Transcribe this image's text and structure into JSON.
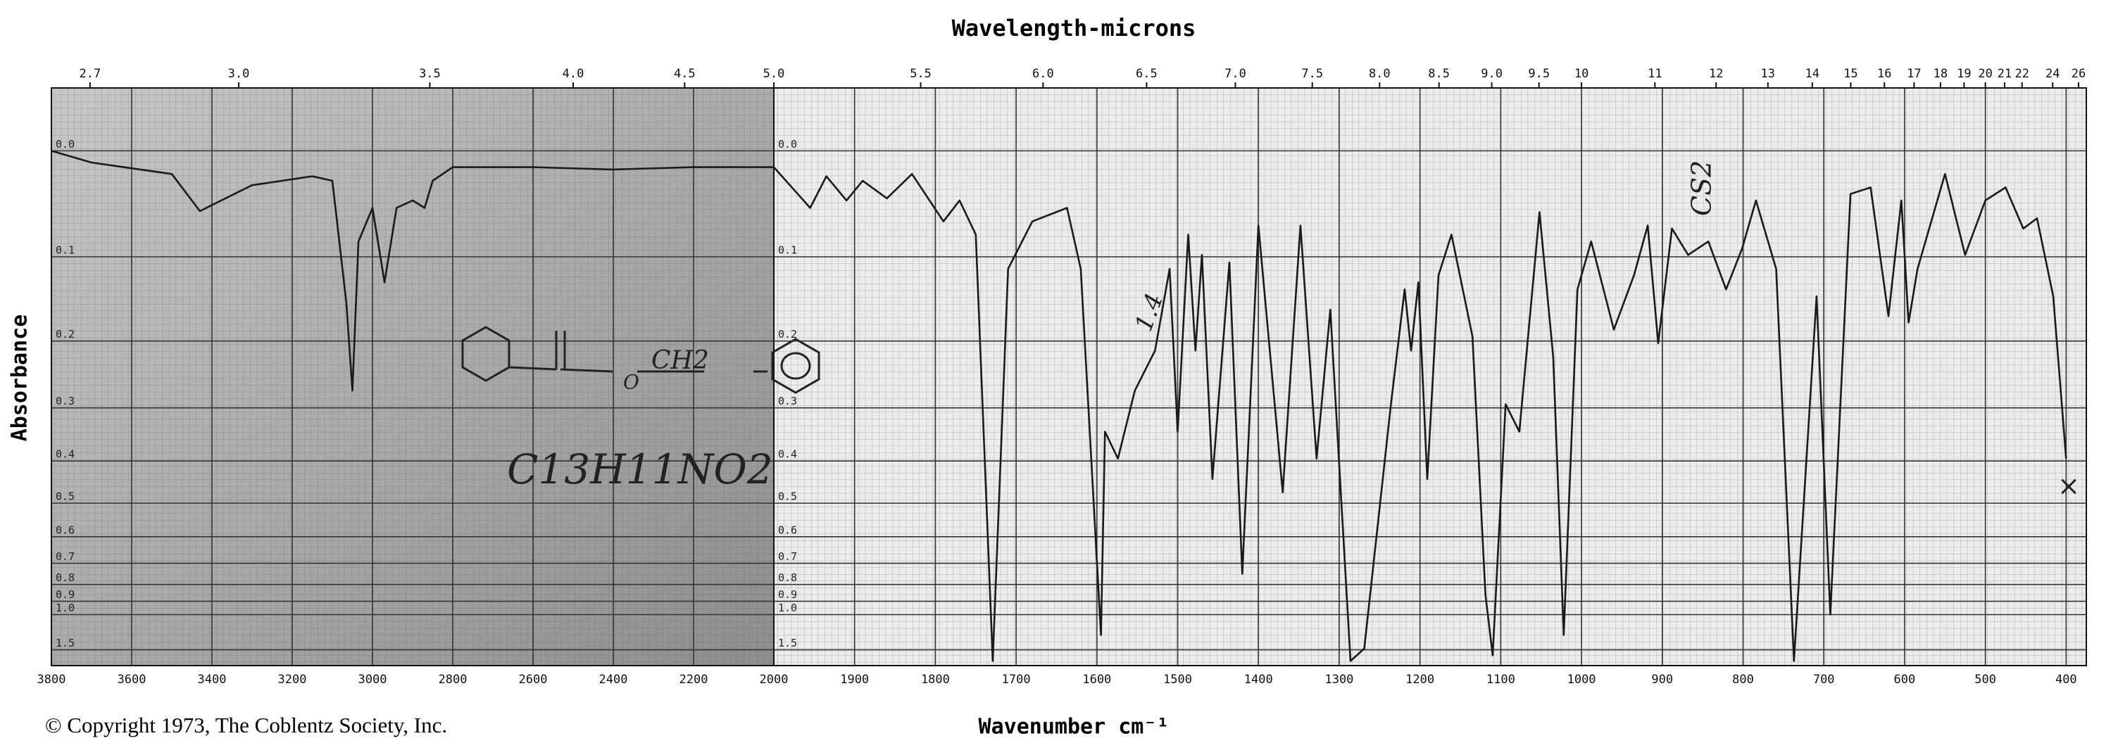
{
  "chart_data": [
    {
      "type": "line",
      "title": "Wavelength-microns",
      "ylabel": "Absorbance",
      "xlabel": "Wavenumber cm⁻¹",
      "yscale": "absorbance",
      "grid": true,
      "xlim": [
        3800,
        2000
      ],
      "ylim": [
        -0.05,
        3
      ],
      "xticks": [
        3800,
        3600,
        3400,
        3200,
        3000,
        2800,
        2600,
        2400,
        2200,
        2000
      ],
      "x2ticks": [
        2.7,
        {
          "value": 3,
          "label": "3.0"
        },
        3.5,
        {
          "value": 4,
          "label": "4.0"
        },
        4.5,
        {
          "value": 5,
          "label": "5.0"
        }
      ],
      "yticks": [
        {
          "value": 0,
          "label": "0.0"
        },
        0.1,
        0.2,
        0.3,
        0.4,
        0.5,
        0.6,
        0.7,
        0.8,
        0.9,
        {
          "value": 1,
          "label": "1.0"
        },
        1.5
      ],
      "series": [
        {
          "color": "#1a1a1a",
          "x": [
            3800,
            3700,
            3600,
            3500,
            3430,
            3300,
            3150,
            3100,
            3065,
            3050,
            3035,
            3000,
            2970,
            2940,
            2900,
            2870,
            2850,
            2800,
            2600,
            2400,
            2200,
            2000
          ],
          "values": [
            0,
            0.01,
            0.015,
            0.02,
            0.054,
            0.03,
            0.022,
            0.026,
            0.152,
            0.272,
            0.084,
            0.051,
            0.128,
            0.051,
            0.044,
            0.051,
            0.026,
            0.014,
            0.014,
            0.016,
            0.014,
            0.014
          ]
        }
      ],
      "annotations": [
        "C13H11NO2",
        "O",
        "CH2",
        "1.4",
        "CS2",
        "×"
      ]
    },
    {
      "type": "line",
      "yscale": "absorbance",
      "grid": true,
      "xlim": [
        2000,
        375
      ],
      "ylim": [
        -0.05,
        3
      ],
      "xticks": [
        1900,
        1800,
        1700,
        1600,
        1500,
        1400,
        1300,
        1200,
        1100,
        1000,
        900,
        800,
        700,
        600,
        500,
        400
      ],
      "x2ticks": [
        5.5,
        {
          "value": 6,
          "label": "6.0"
        },
        6.5,
        {
          "value": 7,
          "label": "7.0"
        },
        7.5,
        {
          "value": 8,
          "label": "8.0"
        },
        8.5,
        {
          "value": 9,
          "label": "9.0"
        },
        9.5,
        10,
        11,
        12,
        13,
        14,
        15,
        16,
        17,
        18,
        19,
        20,
        21,
        22,
        24,
        26
      ],
      "yticks": [
        {
          "value": 0,
          "label": "0.0"
        },
        0.1,
        0.2,
        0.3,
        0.4,
        0.5,
        0.6,
        0.7,
        0.8,
        0.9,
        {
          "value": 1,
          "label": "1.0"
        },
        1.5
      ],
      "series": [
        {
          "color": "#1a1a1a",
          "x": [
            2000,
            1955,
            1935,
            1910,
            1890,
            1860,
            1829,
            1790,
            1770,
            1750,
            1729,
            1710,
            1680,
            1637,
            1620,
            1595,
            1590,
            1574,
            1553,
            1528,
            1510,
            1500,
            1487,
            1478,
            1470,
            1457,
            1436,
            1420,
            1400,
            1370,
            1348,
            1328,
            1311,
            1286,
            1269,
            1236,
            1219,
            1211,
            1202,
            1191,
            1177,
            1161,
            1135,
            1119,
            1110,
            1094,
            1077,
            1052,
            1035,
            1022,
            1005,
            988,
            960,
            935,
            918,
            905,
            888,
            868,
            843,
            821,
            801,
            784,
            759,
            737,
            709,
            692,
            667,
            642,
            620,
            604,
            595,
            584,
            550,
            525,
            500,
            475,
            453,
            436,
            416,
            400
          ],
          "values": [
            0.014,
            0.051,
            0.022,
            0.044,
            0.026,
            0.042,
            0.02,
            0.064,
            0.044,
            0.077,
            2.0,
            0.113,
            0.064,
            0.051,
            0.113,
            1.22,
            0.342,
            0.395,
            0.272,
            0.213,
            0.113,
            0.342,
            0.077,
            0.213,
            0.098,
            0.44,
            0.106,
            0.747,
            0.068,
            0.472,
            0.068,
            0.395,
            0.16,
            2.0,
            1.47,
            0.294,
            0.136,
            0.213,
            0.128,
            0.44,
            0.12,
            0.077,
            0.194,
            0.857,
            1.68,
            0.294,
            0.342,
            0.055,
            0.222,
            1.22,
            0.136,
            0.084,
            0.185,
            0.12,
            0.068,
            0.203,
            0.071,
            0.098,
            0.084,
            0.136,
            0.091,
            0.044,
            0.113,
            2.0,
            0.144,
            1.0,
            0.038,
            0.032,
            0.168,
            0.044,
            0.176,
            0.113,
            0.02,
            0.098,
            0.044,
            0.032,
            0.071,
            0.061,
            0.144,
            0.395
          ]
        }
      ]
    }
  ],
  "footer": "© Copyright 1973, The Coblentz Society, Inc."
}
